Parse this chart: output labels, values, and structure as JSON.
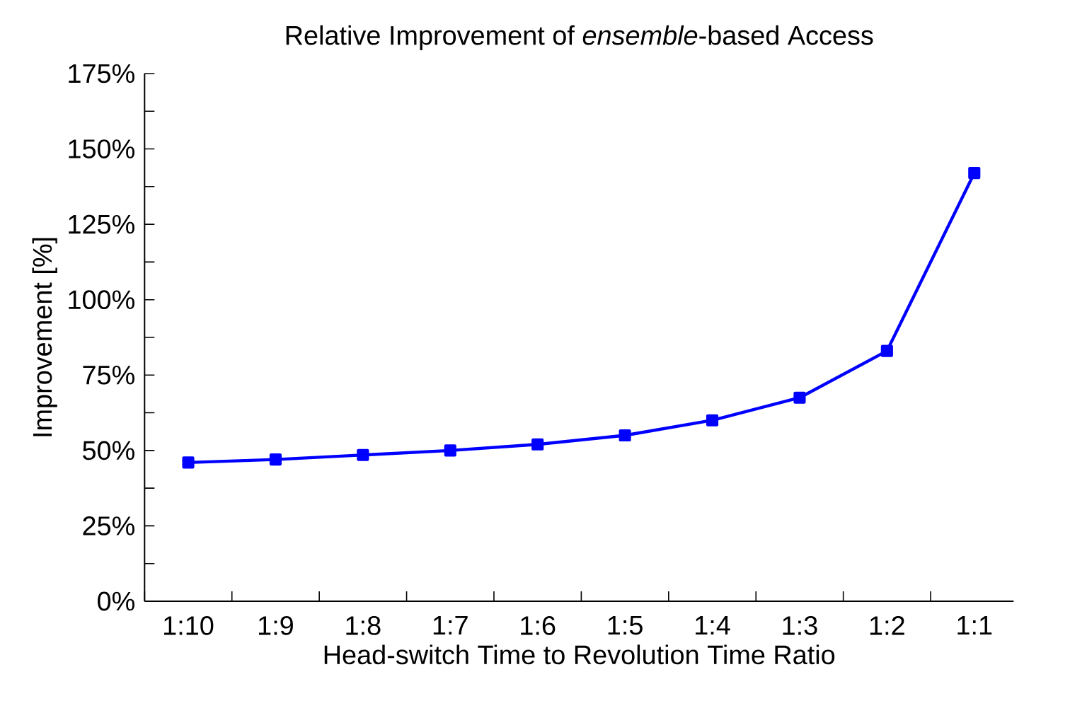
{
  "chart_data": {
    "type": "line",
    "title": "Relative Improvement of *ensemble*-based Access",
    "xlabel": "Head-switch Time to Revolution Time Ratio",
    "ylabel": "Improvement [%]",
    "categories": [
      "1:10",
      "1:9",
      "1:8",
      "1:7",
      "1:6",
      "1:5",
      "1:4",
      "1:3",
      "1:2",
      "1:1"
    ],
    "series": [
      {
        "color": "#0000ff",
        "values": [
          46,
          47,
          48.5,
          50,
          52,
          55,
          60,
          67.5,
          83,
          142
        ]
      }
    ],
    "ylim": [
      0,
      175
    ],
    "yticks": [
      {
        "value": 0,
        "label": "0%"
      },
      {
        "value": 25,
        "label": "25%"
      },
      {
        "value": 50,
        "label": "50%"
      },
      {
        "value": 75,
        "label": "75%"
      },
      {
        "value": 100,
        "label": "100%"
      },
      {
        "value": 125,
        "label": "125%"
      },
      {
        "value": 150,
        "label": "150%"
      },
      {
        "value": 175,
        "label": "175%"
      }
    ],
    "marker": "square",
    "line_style": "solid",
    "grid": false
  }
}
